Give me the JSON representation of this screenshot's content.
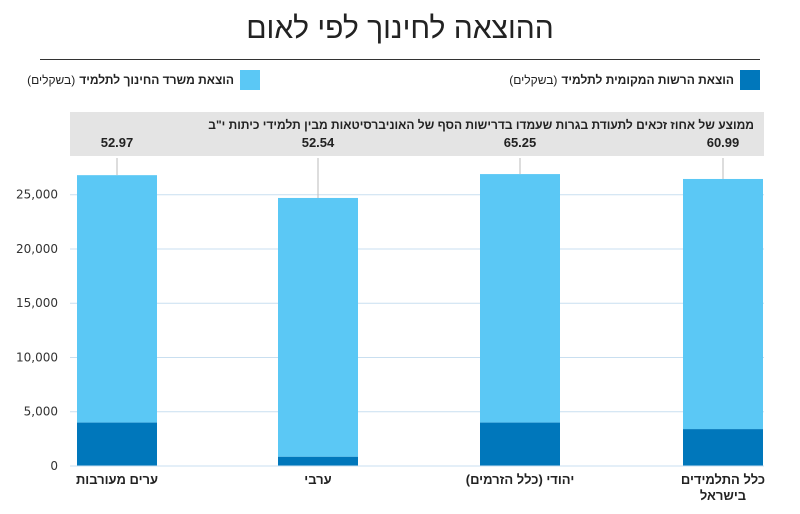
{
  "title": "ההוצאה לחינוך לפי לאום",
  "legend": {
    "local": {
      "label": "הוצאת הרשות המקומית לתלמיד",
      "unit": "(בשקלים)",
      "color": "#0077bb"
    },
    "ministry": {
      "label": "הוצאת משרד החינוך לתלמיד",
      "unit": "(בשקלים)",
      "color": "#5bc8f5"
    }
  },
  "avg_title": "ממוצע של אחוז זכאים לתעודת בגרות שעמדו בדרישות הסף של האוניברסיטאות מבין תלמידי כיתות י\"ב",
  "chart_data": {
    "type": "bar",
    "stacked": true,
    "categories": [
      "ערים מעורבות",
      "ערבי",
      "יהודי (כלל הזרמים)",
      "כלל התלמידים בישראל"
    ],
    "series": [
      {
        "name": "הוצאת הרשות המקומית לתלמיד (בשקלים)",
        "values": [
          4000,
          850,
          4000,
          3400
        ]
      },
      {
        "name": "הוצאת משרד החינוך לתלמיד (בשקלים)",
        "values": [
          22800,
          23850,
          22900,
          23050
        ]
      }
    ],
    "bagrut_avg": [
      "52.97",
      "52.54",
      "65.25",
      "60.99"
    ],
    "ylim": [
      0,
      27500
    ],
    "yticks": [
      0,
      5000,
      10000,
      15000,
      20000,
      25000
    ],
    "ytick_labels": [
      "0",
      "5,000",
      "10,000",
      "15,000",
      "20,000",
      "25,000"
    ],
    "grid": true
  }
}
